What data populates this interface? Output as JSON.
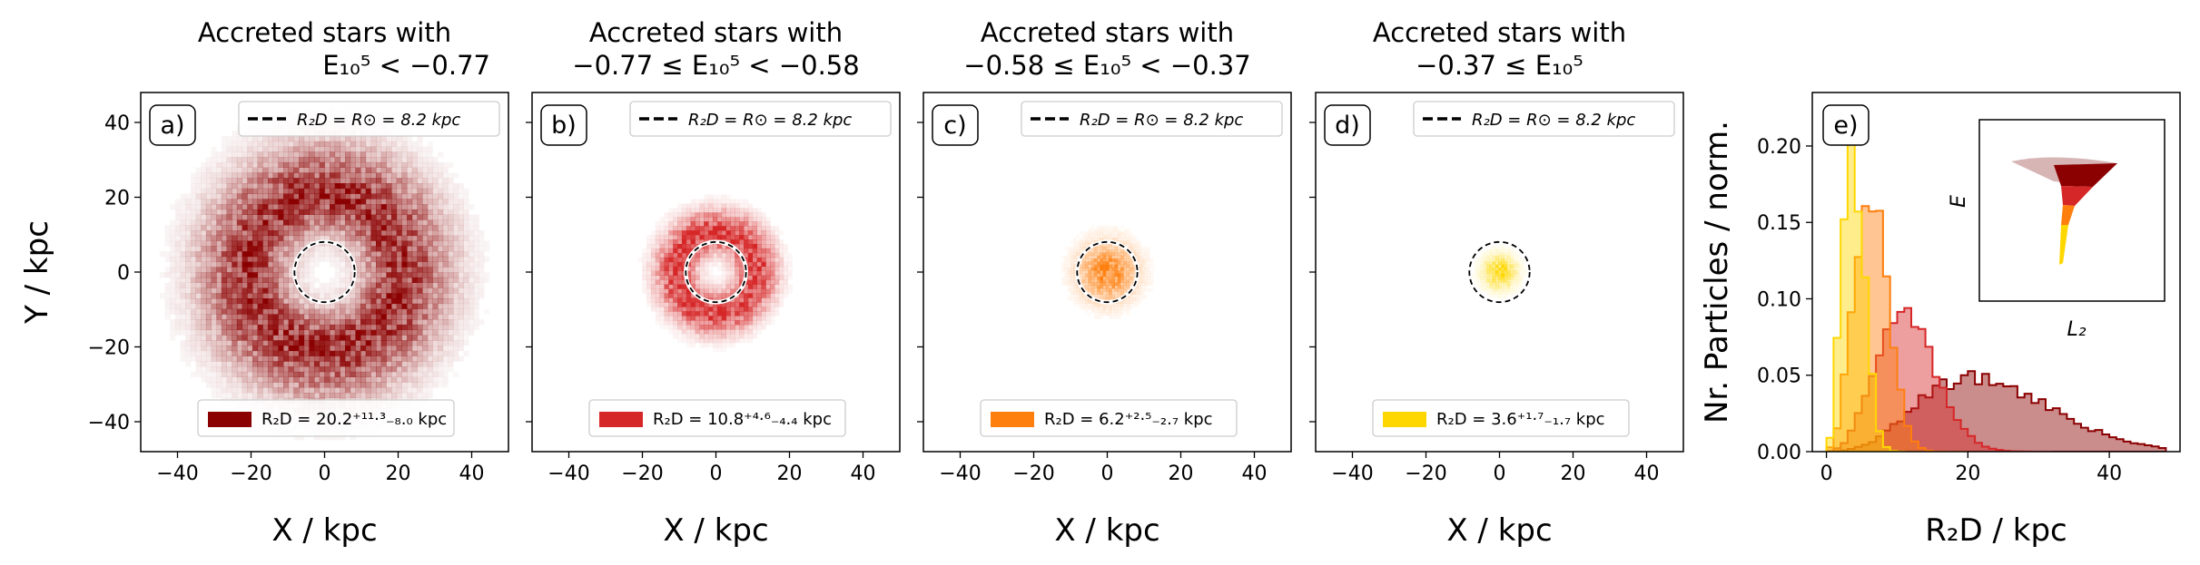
{
  "panels": [
    {
      "label": "a)",
      "title_line1": "Accreted stars with",
      "title_line2": "E₁₀⁵ < −0.77",
      "legend_line": "R₂D = R⊙ = 8.2 kpc",
      "legend_patch": "R₂D = 20.2⁺¹¹·³₋₈.₀ kpc",
      "color": "#8b0000",
      "median_r2d": 20.2,
      "err_plus": 11.3,
      "err_minus": 8.0,
      "xlabel": "X / kpc",
      "ylabel": "Y / kpc"
    },
    {
      "label": "b)",
      "title_line1": "Accreted stars with",
      "title_line2": "−0.77 ≤ E₁₀⁵ < −0.58",
      "legend_line": "R₂D = R⊙ = 8.2 kpc",
      "legend_patch": "R₂D = 10.8⁺⁴·⁶₋₄.₄ kpc",
      "color": "#d62728",
      "median_r2d": 10.8,
      "err_plus": 4.6,
      "err_minus": 4.4,
      "xlabel": "X / kpc",
      "ylabel": ""
    },
    {
      "label": "c)",
      "title_line1": "Accreted stars with",
      "title_line2": "−0.58 ≤ E₁₀⁵ < −0.37",
      "legend_line": "R₂D = R⊙ = 8.2 kpc",
      "legend_patch": "R₂D = 6.2⁺²·⁵₋₂.₇ kpc",
      "color": "#ff7f0e",
      "median_r2d": 6.2,
      "err_plus": 2.5,
      "err_minus": 2.7,
      "xlabel": "X / kpc",
      "ylabel": ""
    },
    {
      "label": "d)",
      "title_line1": "Accreted stars with",
      "title_line2": "−0.37 ≤ E₁₀⁵",
      "legend_line": "R₂D = R⊙ = 8.2 kpc",
      "legend_patch": "R₂D = 3.6⁺¹·⁷₋₁.₇ kpc",
      "color": "#ffd700",
      "median_r2d": 3.6,
      "err_plus": 1.7,
      "err_minus": 1.7,
      "xlabel": "X / kpc",
      "ylabel": ""
    }
  ],
  "sun_radius_kpc": 8.2,
  "xticks": [
    "−40",
    "−20",
    "0",
    "20",
    "40"
  ],
  "yticks": [
    "40",
    "20",
    "0",
    "−20",
    "−40"
  ],
  "panel_e": {
    "label": "e)",
    "xlabel": "R₂D / kpc",
    "ylabel": "Nr. Particles / norm.",
    "xticks": [
      "0",
      "20",
      "40"
    ],
    "yticks": [
      "0.00",
      "0.05",
      "0.10",
      "0.15",
      "0.20"
    ],
    "inset_xlabel": "L₂",
    "inset_ylabel": "E"
  },
  "chart_data": [
    {
      "type": "heatmap",
      "panels": [
        "a",
        "b",
        "c",
        "d"
      ],
      "xlim": [
        -50,
        50
      ],
      "ylim": [
        -48,
        48
      ],
      "xlabel": "X / kpc",
      "ylabel": "Y / kpc",
      "series": [
        {
          "name": "E₁₀⁵ < −0.77",
          "median_r2d": 20.2,
          "err": [
            8.0,
            11.3
          ]
        },
        {
          "name": "−0.77 ≤ E₁₀⁵ < −0.58",
          "median_r2d": 10.8,
          "err": [
            4.4,
            4.6
          ]
        },
        {
          "name": "−0.58 ≤ E₁₀⁵ < −0.37",
          "median_r2d": 6.2,
          "err": [
            2.7,
            2.5
          ]
        },
        {
          "name": "−0.37 ≤ E₁₀⁵",
          "median_r2d": 3.6,
          "err": [
            1.7,
            1.7
          ]
        }
      ],
      "reference_circle_kpc": 8.2
    },
    {
      "type": "area",
      "panel": "e",
      "xlabel": "R₂D / kpc",
      "ylabel": "Nr. Particles / norm.",
      "xlim": [
        -2,
        50
      ],
      "ylim": [
        0,
        0.235
      ],
      "bin_width": 1,
      "series": [
        {
          "color": "#8b0000",
          "median": 20.2,
          "sigma_lo": 8.0,
          "sigma_hi": 11.3,
          "peak": 0.048,
          "rmax": 48
        },
        {
          "color": "#d62728",
          "median": 10.8,
          "sigma_lo": 4.4,
          "sigma_hi": 4.6,
          "peak": 0.088,
          "rmax": 32
        },
        {
          "color": "#ff7f0e",
          "median": 6.2,
          "sigma_lo": 2.7,
          "sigma_hi": 2.5,
          "peak": 0.165,
          "rmax": 20
        },
        {
          "color": "#ffd700",
          "median": 3.6,
          "sigma_lo": 1.7,
          "sigma_hi": 1.7,
          "peak": 0.2,
          "rmax": 11
        }
      ]
    }
  ]
}
